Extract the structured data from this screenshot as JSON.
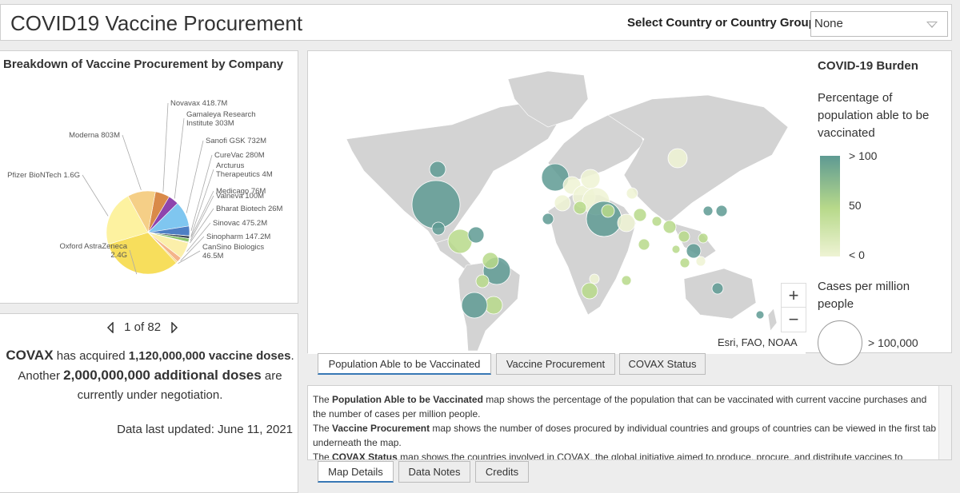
{
  "header": {
    "title": "COVID19 Vaccine Procurement",
    "selector_label": "Select Country or Country Group:",
    "selector_value": "None"
  },
  "pie_panel": {
    "title": "Breakdown of Vaccine Procurement by Company"
  },
  "chart_data": {
    "type": "pie",
    "title": "Breakdown of Vaccine Procurement by Company",
    "slices": [
      {
        "label": "Novavax 418.7M",
        "value": 418.7,
        "color": "#d98a49"
      },
      {
        "label": "Gamaleya Research Institute 303M",
        "value": 303,
        "color": "#8e44ad"
      },
      {
        "label": "Sanofi GSK 732M",
        "value": 732,
        "color": "#7fc6f0"
      },
      {
        "label": "CureVac 280M",
        "value": 280,
        "color": "#4e7fc4"
      },
      {
        "label": "Arcturus Therapeutics 4M",
        "value": 4,
        "color": "#5d9b68"
      },
      {
        "label": "Medicago 76M",
        "value": 76,
        "color": "#3f4a56"
      },
      {
        "label": "Valneva 100M",
        "value": 100,
        "color": "#89c36a"
      },
      {
        "label": "Bharat Biotech 26M",
        "value": 26,
        "color": "#f2d7b0"
      },
      {
        "label": "Sinovac 475.2M",
        "value": 475.2,
        "color": "#fbefaa"
      },
      {
        "label": "Sinopharm 147.2M",
        "value": 147.2,
        "color": "#f4b48a"
      },
      {
        "label": "CanSino Biologics 46.5M",
        "value": 46.5,
        "color": "#f5d56f"
      },
      {
        "label": "Oxford AstraZeneca 2.4G",
        "value": 2400,
        "color": "#f7de5c"
      },
      {
        "label": "Pfizer BioNTech 1.6G",
        "value": 1600,
        "color": "#fdf2a0"
      },
      {
        "label": "Moderna 803M",
        "value": 803,
        "color": "#f5cf87"
      }
    ]
  },
  "covax": {
    "pager": "1 of 82",
    "line1_a": "COVAX",
    "line1_b": " has acquired ",
    "line1_c": "1,120,000,000 vaccine doses",
    "line1_d": ".",
    "line2_a": "Another ",
    "line2_b": "2,000,000,000 additional doses",
    "line2_c": " are",
    "line3": "currently under negotiation.",
    "updated": "Data last updated: June 11, 2021"
  },
  "map": {
    "attribution": "Esri, FAO, NOAA",
    "zoom_in": "+",
    "zoom_out": "−",
    "legend_title": "COVID-19 Burden",
    "legend_sub": "Percentage of population able to be vaccinated",
    "ramp_high": "> 100",
    "ramp_mid": "50",
    "ramp_low": "< 0",
    "cases_title": "Cases per million people",
    "cases_label": "> 100,000",
    "colors": {
      "high": "#5e9a93",
      "mid": "#b7d98a",
      "low": "#eef3d4",
      "land": "#d3d3d3"
    }
  },
  "map_tabs": [
    {
      "label": "Population Able to be Vaccinated",
      "active": true
    },
    {
      "label": "Vaccine Procurement",
      "active": false
    },
    {
      "label": "COVAX Status",
      "active": false
    }
  ],
  "details": {
    "p1_b": "Population Able to be Vaccinated",
    "p1_rest": " map shows the percentage of the population that can be vaccinated with current vaccine purchases and the number of cases per million people.",
    "p2_b": "Vaccine Procurement",
    "p2_rest": " map shows the number of doses procured by individual countries and groups of countries can be viewed in the first tab underneath the map.",
    "p3_b": "COVAX Status",
    "p3_rest": " map shows the countries involved in COVAX, the global initiative aimed to produce, procure, and distribute vaccines to member",
    "the": "The "
  },
  "detail_tabs": [
    {
      "label": "Map Details",
      "active": true
    },
    {
      "label": "Data Notes",
      "active": false
    },
    {
      "label": "Credits",
      "active": false
    }
  ]
}
